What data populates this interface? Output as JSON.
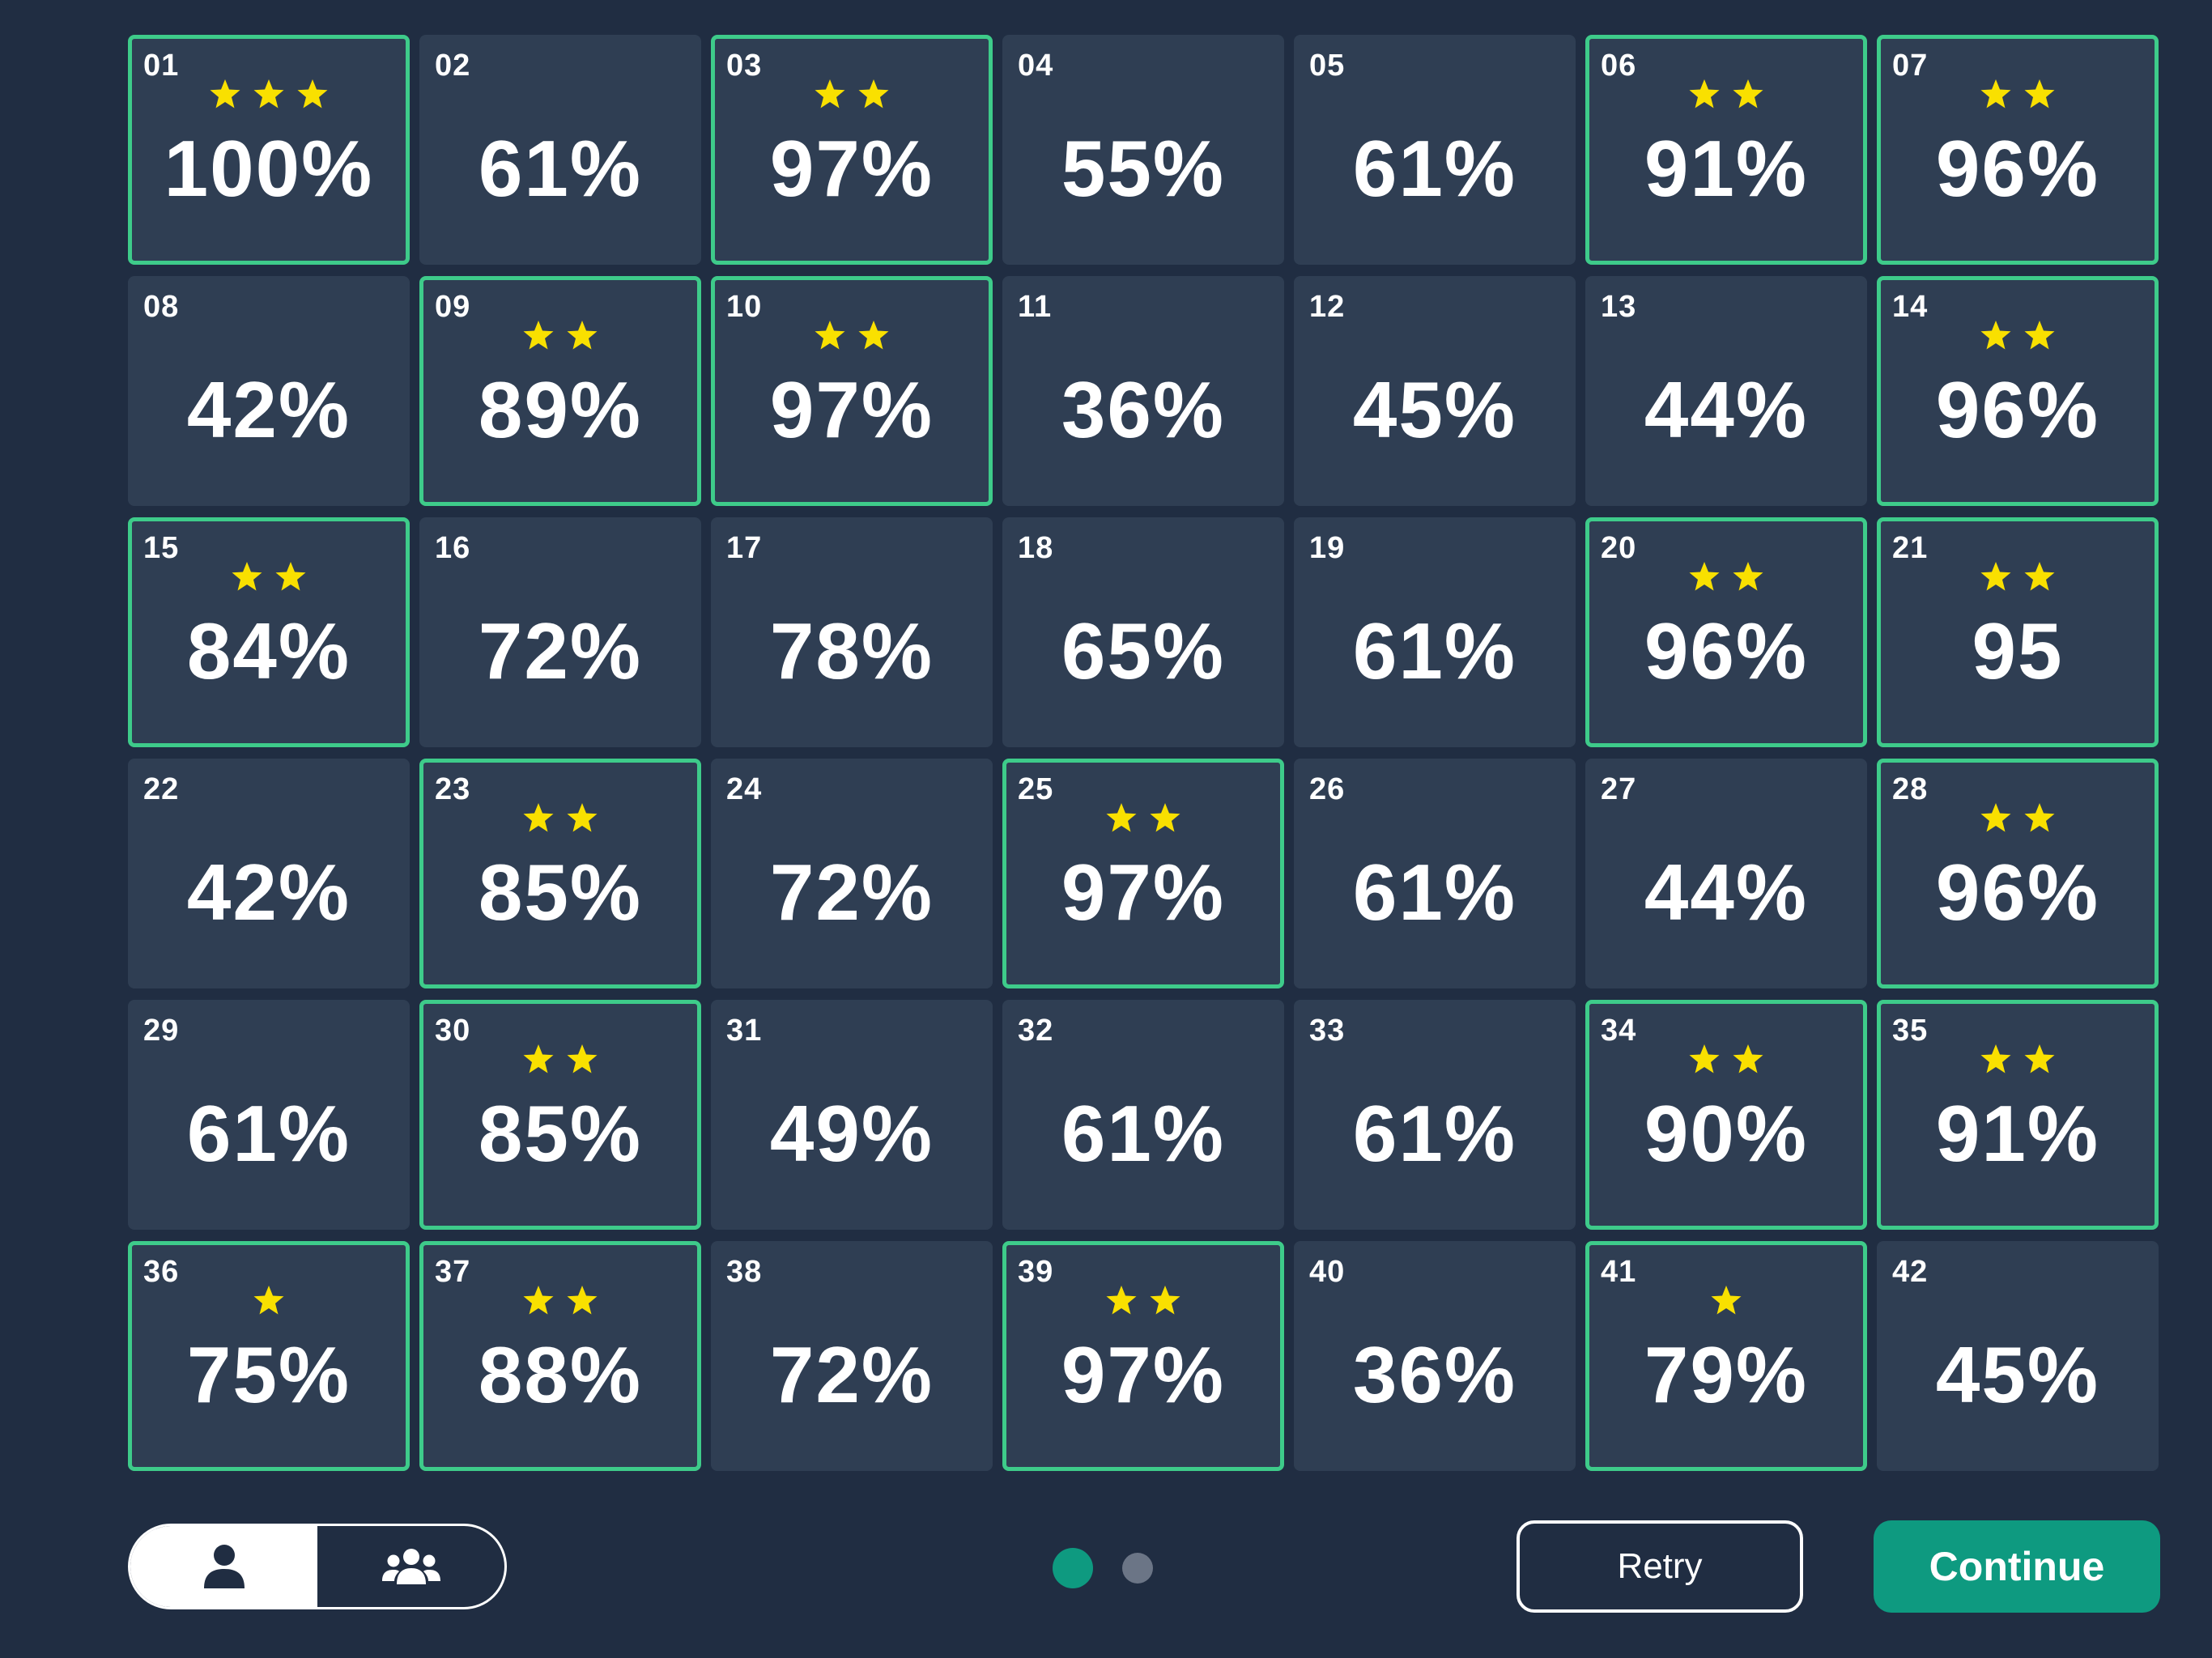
{
  "levels": [
    {
      "num": "01",
      "stars": 3,
      "pct": "100%",
      "done": true
    },
    {
      "num": "02",
      "stars": 0,
      "pct": "61%",
      "done": false
    },
    {
      "num": "03",
      "stars": 2,
      "pct": "97%",
      "done": true
    },
    {
      "num": "04",
      "stars": 0,
      "pct": "55%",
      "done": false
    },
    {
      "num": "05",
      "stars": 0,
      "pct": "61%",
      "done": false
    },
    {
      "num": "06",
      "stars": 2,
      "pct": "91%",
      "done": true
    },
    {
      "num": "07",
      "stars": 2,
      "pct": "96%",
      "done": true
    },
    {
      "num": "08",
      "stars": 0,
      "pct": "42%",
      "done": false
    },
    {
      "num": "09",
      "stars": 2,
      "pct": "89%",
      "done": true
    },
    {
      "num": "10",
      "stars": 2,
      "pct": "97%",
      "done": true
    },
    {
      "num": "11",
      "stars": 0,
      "pct": "36%",
      "done": false
    },
    {
      "num": "12",
      "stars": 0,
      "pct": "45%",
      "done": false
    },
    {
      "num": "13",
      "stars": 0,
      "pct": "44%",
      "done": false
    },
    {
      "num": "14",
      "stars": 2,
      "pct": "96%",
      "done": true
    },
    {
      "num": "15",
      "stars": 2,
      "pct": "84%",
      "done": true
    },
    {
      "num": "16",
      "stars": 0,
      "pct": "72%",
      "done": false
    },
    {
      "num": "17",
      "stars": 0,
      "pct": "78%",
      "done": false
    },
    {
      "num": "18",
      "stars": 0,
      "pct": "65%",
      "done": false
    },
    {
      "num": "19",
      "stars": 0,
      "pct": "61%",
      "done": false
    },
    {
      "num": "20",
      "stars": 2,
      "pct": "96%",
      "done": true
    },
    {
      "num": "21",
      "stars": 2,
      "pct": "95",
      "done": true
    },
    {
      "num": "22",
      "stars": 0,
      "pct": "42%",
      "done": false
    },
    {
      "num": "23",
      "stars": 2,
      "pct": "85%",
      "done": true
    },
    {
      "num": "24",
      "stars": 0,
      "pct": "72%",
      "done": false
    },
    {
      "num": "25",
      "stars": 2,
      "pct": "97%",
      "done": true
    },
    {
      "num": "26",
      "stars": 0,
      "pct": "61%",
      "done": false
    },
    {
      "num": "27",
      "stars": 0,
      "pct": "44%",
      "done": false
    },
    {
      "num": "28",
      "stars": 2,
      "pct": "96%",
      "done": true
    },
    {
      "num": "29",
      "stars": 0,
      "pct": "61%",
      "done": false
    },
    {
      "num": "30",
      "stars": 2,
      "pct": "85%",
      "done": true
    },
    {
      "num": "31",
      "stars": 0,
      "pct": "49%",
      "done": false
    },
    {
      "num": "32",
      "stars": 0,
      "pct": "61%",
      "done": false
    },
    {
      "num": "33",
      "stars": 0,
      "pct": "61%",
      "done": false
    },
    {
      "num": "34",
      "stars": 2,
      "pct": "90%",
      "done": true
    },
    {
      "num": "35",
      "stars": 2,
      "pct": "91%",
      "done": true
    },
    {
      "num": "36",
      "stars": 1,
      "pct": "75%",
      "done": true
    },
    {
      "num": "37",
      "stars": 2,
      "pct": "88%",
      "done": true
    },
    {
      "num": "38",
      "stars": 0,
      "pct": "72%",
      "done": false
    },
    {
      "num": "39",
      "stars": 2,
      "pct": "97%",
      "done": true
    },
    {
      "num": "40",
      "stars": 0,
      "pct": "36%",
      "done": false
    },
    {
      "num": "41",
      "stars": 1,
      "pct": "79%",
      "done": true
    },
    {
      "num": "42",
      "stars": 0,
      "pct": "45%",
      "done": false
    }
  ],
  "icons": {
    "star": "star-icon",
    "single_player": "user-icon",
    "multi_player": "users-group-icon"
  },
  "colors": {
    "background": "#202d42",
    "cell": "#2f3e53",
    "completed_border": "#3ecb8a",
    "star": "#f9e000",
    "accent": "#0e9a80",
    "inactive_dot": "#6b7586"
  },
  "pager": {
    "current": 1,
    "total": 2
  },
  "footer": {
    "retry_label": "Retry",
    "continue_label": "Continue"
  }
}
